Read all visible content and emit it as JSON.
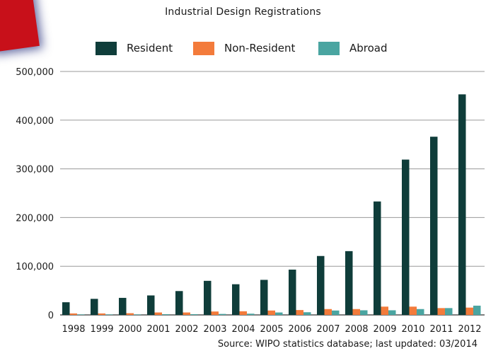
{
  "chart_data": {
    "type": "bar",
    "title": "Industrial Design Registrations",
    "categories": [
      "1998",
      "1999",
      "2000",
      "2001",
      "2002",
      "2003",
      "2004",
      "2005",
      "2006",
      "2007",
      "2008",
      "2009",
      "2010",
      "2011",
      "2012"
    ],
    "series": [
      {
        "name": "Resident",
        "color": "#0f3d3a",
        "values": [
          26000,
          33000,
          35000,
          40000,
          49000,
          70000,
          63000,
          72000,
          93000,
          121000,
          131000,
          233000,
          319000,
          366000,
          453000
        ]
      },
      {
        "name": "Non-Resident",
        "color": "#f37b3b",
        "values": [
          3000,
          3000,
          3500,
          5000,
          5000,
          7000,
          7500,
          9000,
          10000,
          12000,
          12000,
          17000,
          17000,
          14000,
          15000
        ]
      },
      {
        "name": "Abroad",
        "color": "#4aa5a1",
        "values": [
          1000,
          1000,
          1000,
          1500,
          1500,
          2000,
          2500,
          5000,
          5500,
          9000,
          9500,
          9500,
          12000,
          14000,
          19000
        ]
      }
    ],
    "yticks": [
      "0",
      "100,000",
      "200,000",
      "300,000",
      "400,000",
      "500,000"
    ],
    "ylim": [
      0,
      500000
    ],
    "legend_position": "top",
    "grid": true
  },
  "source": "Source: WIPO statistics database; last updated: 03/2014"
}
